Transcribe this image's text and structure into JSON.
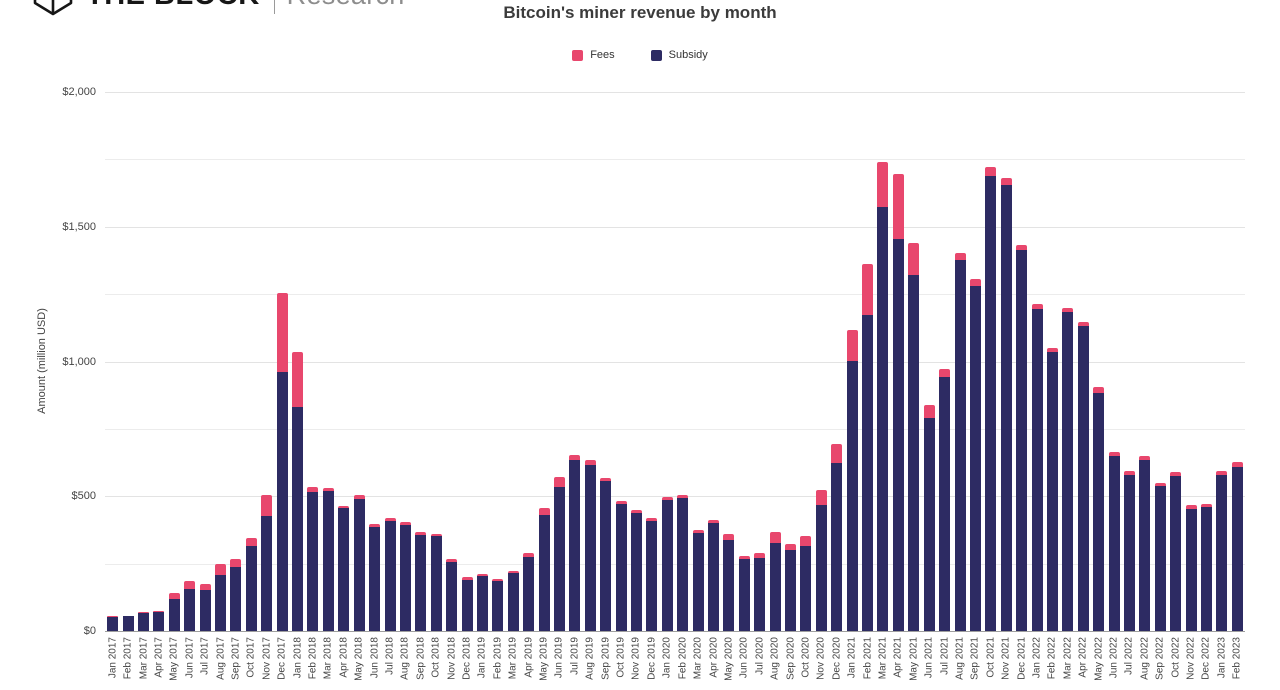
{
  "logo": {
    "brand": "THE BLOCK",
    "division": "Research"
  },
  "chart_data": {
    "type": "bar",
    "stacked": true,
    "title": "Bitcoin's miner revenue by month",
    "ylabel": "Amount (million USD)",
    "ylim": [
      0,
      2000
    ],
    "grid_interval": 250,
    "label_interval": 500,
    "yticks": [
      {
        "value": 0,
        "label": "$0"
      },
      {
        "value": 500,
        "label": "$500"
      },
      {
        "value": 1000,
        "label": "$1,000"
      },
      {
        "value": 1500,
        "label": "$1,500"
      },
      {
        "value": 2000,
        "label": "$2,000"
      }
    ],
    "legend_position": "top-center",
    "legend": [
      {
        "name": "Fees",
        "color": "#e8476d"
      },
      {
        "name": "Subsidy",
        "color": "#2d2b63"
      }
    ],
    "categories": [
      "Jan 2017",
      "Feb 2017",
      "Mar 2017",
      "Apr 2017",
      "May 2017",
      "Jun 2017",
      "Jul 2017",
      "Aug 2017",
      "Sep 2017",
      "Oct 2017",
      "Nov 2017",
      "Dec 2017",
      "Jan 2018",
      "Feb 2018",
      "Mar 2018",
      "Apr 2018",
      "May 2018",
      "Jun 2018",
      "Jul 2018",
      "Aug 2018",
      "Sep 2018",
      "Oct 2018",
      "Nov 2018",
      "Dec 2018",
      "Jan 2019",
      "Feb 2019",
      "Mar 2019",
      "Apr 2019",
      "May 2019",
      "Jun 2019",
      "Jul 2019",
      "Aug 2019",
      "Sep 2019",
      "Oct 2019",
      "Nov 2019",
      "Dec 2019",
      "Jan 2020",
      "Feb 2020",
      "Mar 2020",
      "Apr 2020",
      "May 2020",
      "Jun 2020",
      "Jul 2020",
      "Aug 2020",
      "Sep 2020",
      "Oct 2020",
      "Nov 2020",
      "Dec 2020",
      "Jan 2021",
      "Feb 2021",
      "Mar 2021",
      "Apr 2021",
      "May 2021",
      "Jun 2021",
      "Jul 2021",
      "Aug 2021",
      "Sep 2021",
      "Oct 2021",
      "Nov 2021",
      "Dec 2021",
      "Jan 2022",
      "Feb 2022",
      "Mar 2022",
      "Apr 2022",
      "May 2022",
      "Jun 2022",
      "Jul 2022",
      "Aug 2022",
      "Sep 2022",
      "Oct 2022",
      "Nov 2022",
      "Dec 2022",
      "Jan 2023",
      "Feb 2023"
    ],
    "series": [
      {
        "name": "Fees",
        "color": "#e8476d",
        "values": [
          3,
          3,
          5,
          6,
          25,
          28,
          20,
          40,
          30,
          32,
          80,
          293,
          205,
          21,
          14,
          10,
          12,
          9,
          9,
          11,
          9,
          8,
          9,
          11,
          8,
          8,
          8,
          14,
          29,
          35,
          22,
          17,
          10,
          10,
          9,
          9,
          10,
          12,
          13,
          12,
          24,
          11,
          19,
          41,
          23,
          36,
          53,
          70,
          115,
          186,
          167,
          242,
          120,
          46,
          28,
          25,
          25,
          35,
          25,
          17,
          16,
          14,
          17,
          16,
          20,
          15,
          15,
          14,
          12,
          15,
          15,
          10,
          15,
          18
        ]
      },
      {
        "name": "Subsidy",
        "color": "#2d2b63",
        "values": [
          52,
          54,
          67,
          69,
          117,
          157,
          153,
          207,
          238,
          314,
          426,
          960,
          830,
          514,
          518,
          455,
          491,
          387,
          410,
          393,
          358,
          351,
          257,
          190,
          203,
          184,
          214,
          276,
          429,
          535,
          633,
          616,
          558,
          472,
          439,
          410,
          487,
          493,
          362,
          401,
          337,
          266,
          272,
          327,
          301,
          316,
          469,
          624,
          1003,
          1174,
          1575,
          1455,
          1320,
          791,
          943,
          1378,
          1281,
          1687,
          1655,
          1415,
          1196,
          1035,
          1183,
          1130,
          885,
          648,
          580,
          636,
          537,
          574,
          451,
          462,
          580,
          608
        ]
      }
    ]
  }
}
